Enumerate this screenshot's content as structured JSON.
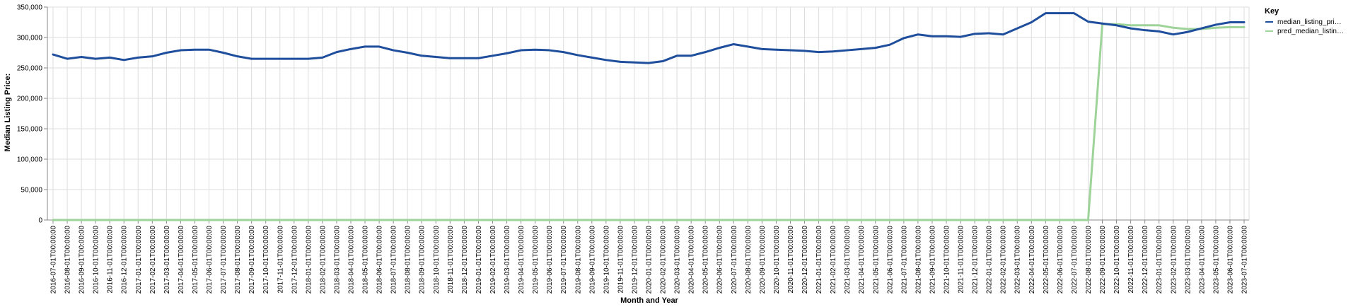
{
  "chart_data": {
    "type": "line",
    "xlabel": "Month and Year",
    "ylabel": "Median Listing Price:",
    "ylim": [
      0,
      350000
    ],
    "yticks": [
      "0",
      "50,000",
      "100,000",
      "150,000",
      "200,000",
      "250,000",
      "300,000",
      "350,000"
    ],
    "grid": true,
    "legend": {
      "title": "Key",
      "placement": "right"
    },
    "x": [
      "2016-07-01T00:00:00",
      "2016-08-01T00:00:00",
      "2016-09-01T00:00:00",
      "2016-10-01T00:00:00",
      "2016-11-01T00:00:00",
      "2016-12-01T00:00:00",
      "2017-01-01T00:00:00",
      "2017-02-01T00:00:00",
      "2017-03-01T00:00:00",
      "2017-04-01T00:00:00",
      "2017-05-01T00:00:00",
      "2017-06-01T00:00:00",
      "2017-07-01T00:00:00",
      "2017-08-01T00:00:00",
      "2017-09-01T00:00:00",
      "2017-10-01T00:00:00",
      "2017-11-01T00:00:00",
      "2017-12-01T00:00:00",
      "2018-01-01T00:00:00",
      "2018-02-01T00:00:00",
      "2018-03-01T00:00:00",
      "2018-04-01T00:00:00",
      "2018-05-01T00:00:00",
      "2018-06-01T00:00:00",
      "2018-07-01T00:00:00",
      "2018-08-01T00:00:00",
      "2018-09-01T00:00:00",
      "2018-10-01T00:00:00",
      "2018-11-01T00:00:00",
      "2018-12-01T00:00:00",
      "2019-01-01T00:00:00",
      "2019-02-01T00:00:00",
      "2019-03-01T00:00:00",
      "2019-04-01T00:00:00",
      "2019-05-01T00:00:00",
      "2019-06-01T00:00:00",
      "2019-07-01T00:00:00",
      "2019-08-01T00:00:00",
      "2019-09-01T00:00:00",
      "2019-10-01T00:00:00",
      "2019-11-01T00:00:00",
      "2019-12-01T00:00:00",
      "2020-01-01T00:00:00",
      "2020-02-01T00:00:00",
      "2020-03-01T00:00:00",
      "2020-04-01T00:00:00",
      "2020-05-01T00:00:00",
      "2020-06-01T00:00:00",
      "2020-07-01T00:00:00",
      "2020-08-01T00:00:00",
      "2020-09-01T00:00:00",
      "2020-10-01T00:00:00",
      "2020-11-01T00:00:00",
      "2020-12-01T00:00:00",
      "2021-01-01T00:00:00",
      "2021-02-01T00:00:00",
      "2021-03-01T00:00:00",
      "2021-04-01T00:00:00",
      "2021-05-01T00:00:00",
      "2021-06-01T00:00:00",
      "2021-07-01T00:00:00",
      "2021-08-01T00:00:00",
      "2021-09-01T00:00:00",
      "2021-10-01T00:00:00",
      "2021-11-01T00:00:00",
      "2021-12-01T00:00:00",
      "2022-01-01T00:00:00",
      "2022-02-01T00:00:00",
      "2022-03-01T00:00:00",
      "2022-04-01T00:00:00",
      "2022-05-01T00:00:00",
      "2022-06-01T00:00:00",
      "2022-07-01T00:00:00",
      "2022-08-01T00:00:00",
      "2022-09-01T00:00:00",
      "2022-10-01T00:00:00",
      "2022-11-01T00:00:00",
      "2022-12-01T00:00:00",
      "2023-01-01T00:00:00",
      "2023-02-01T00:00:00",
      "2023-03-01T00:00:00",
      "2023-04-01T00:00:00",
      "2023-05-01T00:00:00",
      "2023-06-01T00:00:00",
      "2023-07-01T00:00:00"
    ],
    "series": [
      {
        "name": "median_listing_pri…",
        "color": "#1f4e9c",
        "values": [
          272000,
          265000,
          268000,
          265000,
          267000,
          263000,
          267000,
          269000,
          275000,
          279000,
          280000,
          280000,
          275000,
          269000,
          265000,
          265000,
          265000,
          265000,
          265000,
          267000,
          276000,
          281000,
          285000,
          285000,
          279000,
          275000,
          270000,
          268000,
          266000,
          266000,
          266000,
          270000,
          274000,
          279000,
          280000,
          279000,
          276000,
          271000,
          267000,
          263000,
          260000,
          259000,
          258000,
          261000,
          270000,
          270000,
          276000,
          283000,
          289000,
          285000,
          281000,
          280000,
          279000,
          278000,
          276000,
          277000,
          279000,
          281000,
          283000,
          288000,
          299000,
          305000,
          302000,
          302000,
          301000,
          306000,
          307000,
          305000,
          315000,
          325000,
          340000,
          340000,
          340000,
          326000,
          323000,
          320000,
          315000,
          312000,
          310000,
          305000,
          309000,
          315000,
          321000,
          325000,
          325000
        ]
      },
      {
        "name": "pred_median_listin…",
        "color": "#9ed49a",
        "values": [
          0,
          0,
          0,
          0,
          0,
          0,
          0,
          0,
          0,
          0,
          0,
          0,
          0,
          0,
          0,
          0,
          0,
          0,
          0,
          0,
          0,
          0,
          0,
          0,
          0,
          0,
          0,
          0,
          0,
          0,
          0,
          0,
          0,
          0,
          0,
          0,
          0,
          0,
          0,
          0,
          0,
          0,
          0,
          0,
          0,
          0,
          0,
          0,
          0,
          0,
          0,
          0,
          0,
          0,
          0,
          0,
          0,
          0,
          0,
          0,
          0,
          0,
          0,
          0,
          0,
          0,
          0,
          0,
          0,
          0,
          0,
          0,
          0,
          0,
          322000,
          322000,
          320000,
          320000,
          320000,
          316000,
          314000,
          314000,
          316000,
          317000,
          317000
        ]
      }
    ]
  }
}
